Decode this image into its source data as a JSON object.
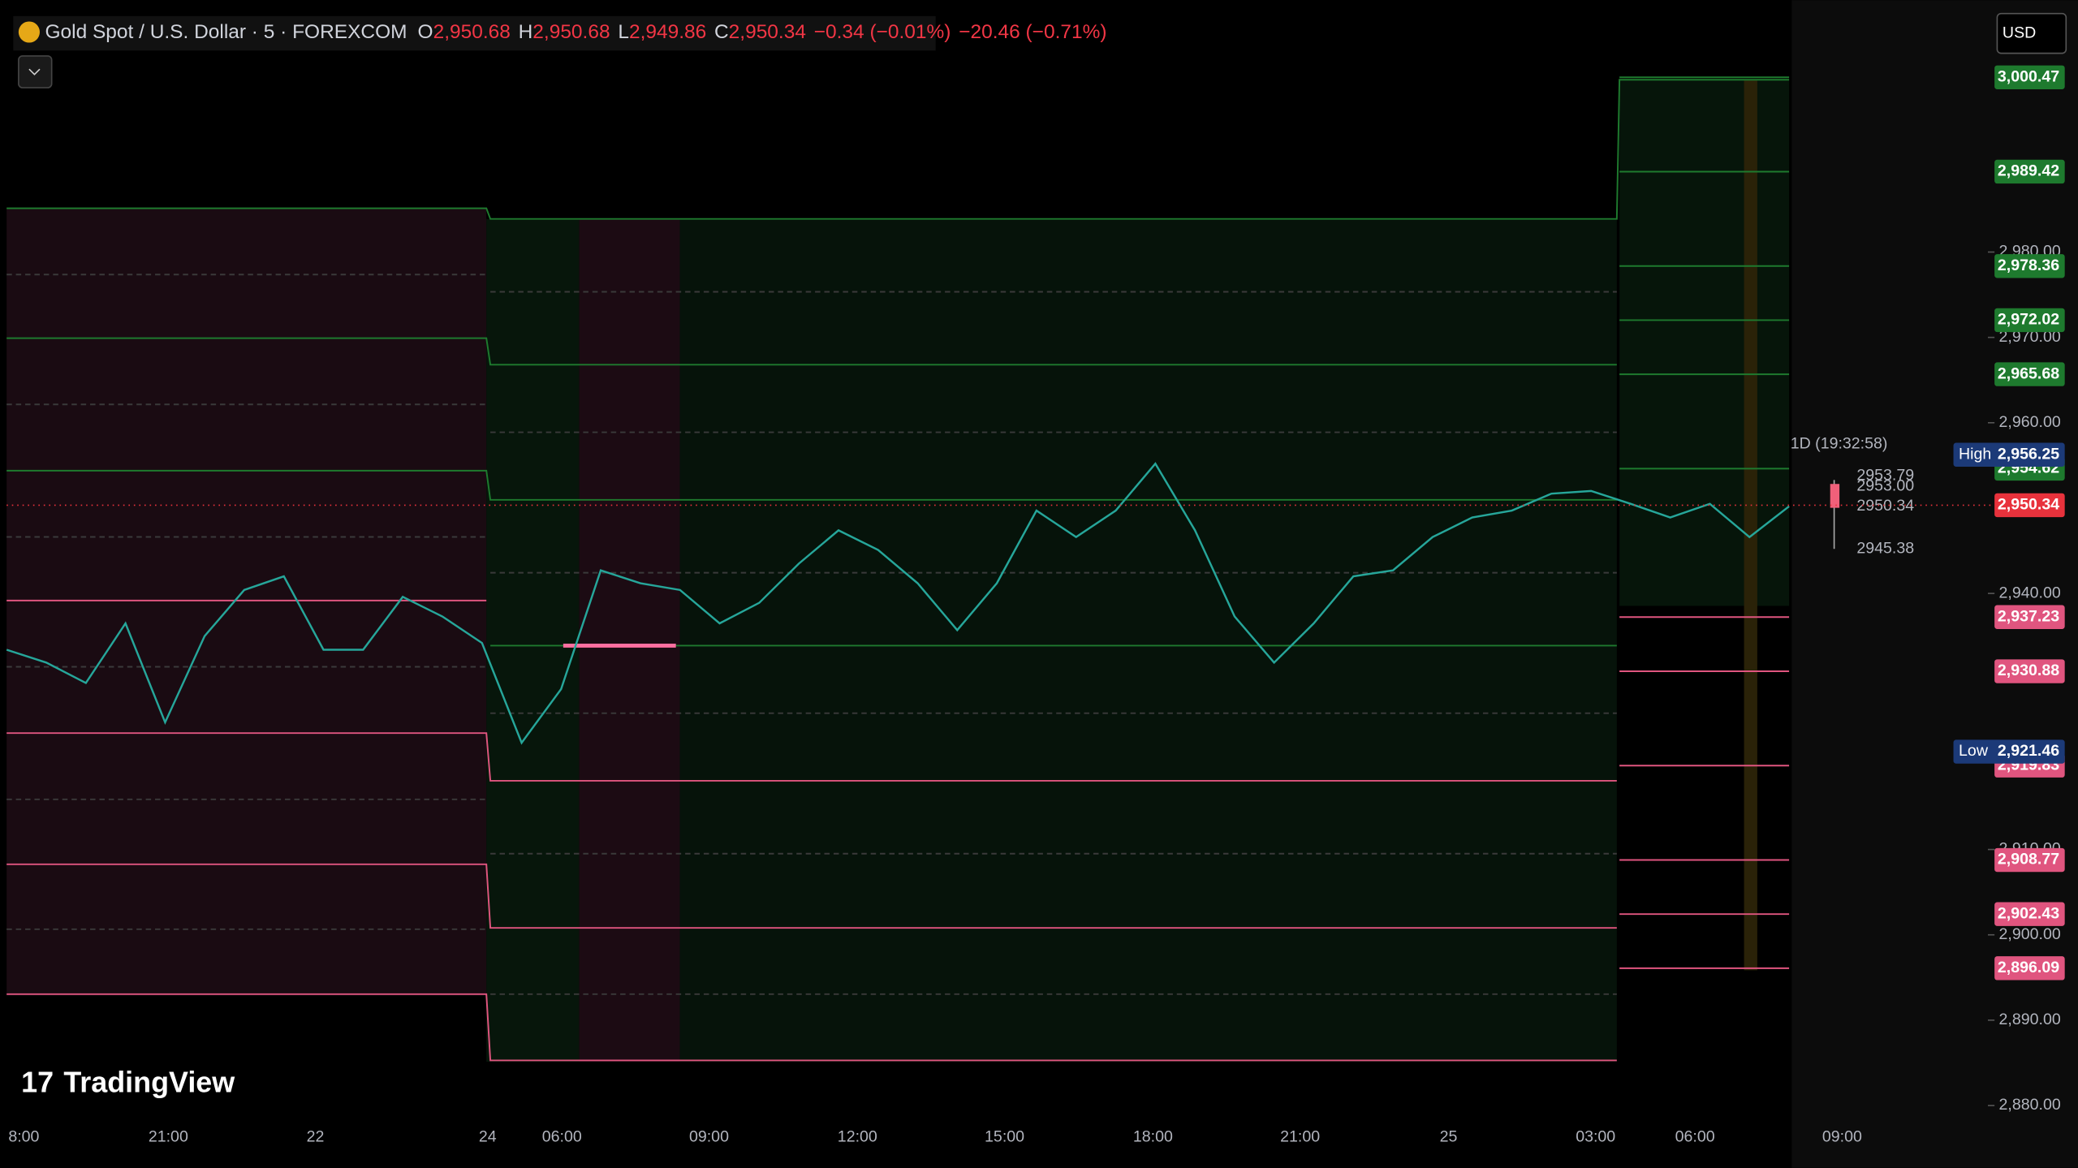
{
  "header": {
    "symbol": "Gold Spot / U.S. Dollar · 5 · FOREXCOM",
    "ohlc": [
      {
        "label": "O",
        "value": "2,950.68"
      },
      {
        "label": "H",
        "value": "2,950.68"
      },
      {
        "label": "L",
        "value": "2,949.86"
      },
      {
        "label": "C",
        "value": "2,950.34"
      }
    ],
    "change": "−0.34 (−0.01%)",
    "change_session": "−20.46 (−0.71%)"
  },
  "currency": "USD",
  "brand": "TradingView",
  "daily_candle": {
    "title": "1D (19:32:58)",
    "labels": [
      "2953.79",
      "2953.00",
      "2950.34",
      "2945.38"
    ]
  },
  "chart_data": {
    "type": "line",
    "color": "#26a69a",
    "values": [
      2933.4,
      2931.9,
      2929.5,
      2936.5,
      2924.9,
      2935.0,
      2940.4,
      2942.0,
      2933.4,
      2933.4,
      2939.6,
      2937.3,
      2934.2,
      2922.5,
      2928.8,
      2942.7,
      2941.2,
      2940.4,
      2936.5,
      2938.9,
      2943.5,
      2947.4,
      2945.1,
      2941.2,
      2935.7,
      2941.2,
      2949.7,
      2946.6,
      2949.7,
      2955.2,
      2947.4,
      2937.3,
      2931.9,
      2936.5,
      2942.0,
      2942.7,
      2946.6,
      2948.9,
      2949.7,
      2951.7,
      2952.0,
      2950.5,
      2948.9,
      2950.5,
      2946.6,
      2950.2
    ],
    "ylim": [
      2878.3,
      3009.5
    ],
    "yticks": [
      {
        "value": 2980,
        "label": "2,980.00"
      },
      {
        "value": 2970,
        "label": "2,970.00"
      },
      {
        "value": 2960,
        "label": "2,960.00"
      },
      {
        "value": 2940,
        "label": "2,940.00"
      },
      {
        "value": 2910,
        "label": "2,910.00"
      },
      {
        "value": 2900,
        "label": "2,900.00"
      },
      {
        "value": 2890,
        "label": "2,890.00"
      },
      {
        "value": 2880,
        "label": "2,880.00"
      }
    ],
    "time_labels": [
      "8:00",
      "21:00",
      "22",
      "24",
      "06:00",
      "09:00",
      "12:00",
      "15:00",
      "18:00",
      "21:00",
      "25",
      "03:00",
      "06:00",
      "09:00"
    ],
    "levels": [
      {
        "value": 3000.47,
        "label": "3,000.47",
        "color": "#1e7a2e"
      },
      {
        "value": 2989.42,
        "label": "2,989.42",
        "color": "#1e7a2e"
      },
      {
        "value": 2978.36,
        "label": "2,978.36",
        "color": "#1e7a2e"
      },
      {
        "value": 2972.02,
        "label": "2,972.02",
        "color": "#1e7a2e"
      },
      {
        "value": 2965.68,
        "label": "2,965.68",
        "color": "#1e7a2e"
      },
      {
        "value": 2954.62,
        "label": "2,954.62",
        "color": "#1e7a2e"
      },
      {
        "value": 2937.23,
        "label": "2,937.23",
        "color": "#e0557f"
      },
      {
        "value": 2930.88,
        "label": "2,930.88",
        "color": "#e0557f"
      },
      {
        "value": 2919.83,
        "label": "2,919.83",
        "color": "#e0557f"
      },
      {
        "value": 2908.77,
        "label": "2,908.77",
        "color": "#e0557f"
      },
      {
        "value": 2902.43,
        "label": "2,902.43",
        "color": "#e0557f"
      },
      {
        "value": 2896.09,
        "label": "2,896.09",
        "color": "#e0557f"
      }
    ],
    "extremes": [
      {
        "name": "High",
        "value": 2956.25,
        "label": "2,956.25"
      },
      {
        "name": "Low",
        "value": 2921.46,
        "label": "2,921.46"
      }
    ],
    "last": {
      "value": 2950.34,
      "label": "2,950.34",
      "color": "#e8323c"
    }
  }
}
